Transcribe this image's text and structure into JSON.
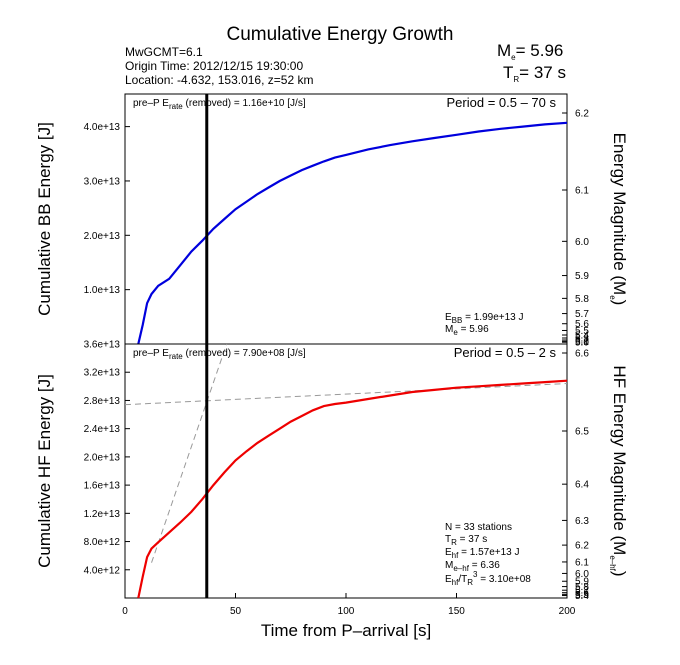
{
  "header": {
    "title": "Cumulative Energy Growth",
    "info_line1": "MwGCMT=6.1",
    "info_line2": "Origin Time: 2012/12/15 19:30:00",
    "info_line3": "Location: -4.632, 153.016, z=52 km",
    "me_prefix": "M",
    "me_sub": "e",
    "me_value": "= 5.96",
    "tr_prefix": "T",
    "tr_sub": "R",
    "tr_value": "= 37 s"
  },
  "colors": {
    "bb": "#0000dd",
    "hf": "#ee0000",
    "marker": "#000000",
    "dashed": "#999999"
  },
  "chart_data": [
    {
      "type": "line",
      "xlim": [
        0,
        200
      ],
      "ylim": [
        0,
        46000000000000.0
      ],
      "ylabel": "Cumulative BB Energy [J]",
      "right_label_main": "Energy Magnitude (M",
      "right_label_sub": "e",
      "right_label_end": ")",
      "period": "Period = 0.5 – 70 s",
      "rate_prefix": "pre–P E",
      "rate_sub": "rate",
      "rate_text": " (removed) = 1.16e+10 [J/s]",
      "ann1_prefix": "E",
      "ann1_sub": "BB",
      "ann1_text": " = 1.99e+13 J",
      "ann2_prefix": "M",
      "ann2_sub": "e",
      "ann2_text": " = 5.96",
      "yticks": [
        {
          "v": 10000000000000.0,
          "label": "1.0e+13"
        },
        {
          "v": 20000000000000.0,
          "label": "2.0e+13"
        },
        {
          "v": 30000000000000.0,
          "label": "3.0e+13"
        },
        {
          "v": 40000000000000.0,
          "label": "4.0e+13"
        }
      ],
      "right_ticks": [
        {
          "v": 6.2,
          "label": "6.2"
        },
        {
          "v": 6.1,
          "label": "6.1"
        },
        {
          "v": 6.0,
          "label": "6.0"
        },
        {
          "v": 5.9,
          "label": "5.9"
        },
        {
          "v": 5.8,
          "label": "5.8"
        },
        {
          "v": 5.7,
          "label": "5.7"
        },
        {
          "v": 5.6,
          "label": "5.6"
        },
        {
          "v": 5.5,
          "label": "5.5"
        },
        {
          "v": 5.4,
          "label": "5.4"
        },
        {
          "v": 5.3,
          "label": "5.3"
        },
        {
          "v": 5.2,
          "label": "5.2"
        },
        {
          "v": 5.1,
          "label": "5.1"
        },
        {
          "v": 5.0,
          "label": "5.0"
        }
      ],
      "series": [
        {
          "x": [
            6,
            8,
            10,
            12,
            15,
            20,
            25,
            30,
            35,
            40,
            45,
            50,
            55,
            60,
            65,
            70,
            75,
            80,
            85,
            90,
            95,
            100,
            110,
            120,
            130,
            140,
            150,
            160,
            170,
            180,
            190,
            200
          ],
          "y": [
            0,
            3500000000000.0,
            7500000000000.0,
            9200000000000.0,
            10700000000000.0,
            12000000000000.0,
            14500000000000.0,
            17000000000000.0,
            19000000000000.0,
            21200000000000.0,
            23000000000000.0,
            24800000000000.0,
            26200000000000.0,
            27600000000000.0,
            28800000000000.0,
            30000000000000.0,
            31000000000000.0,
            32000000000000.0,
            32800000000000.0,
            33600000000000.0,
            34300000000000.0,
            34800000000000.0,
            35800000000000.0,
            36600000000000.0,
            37300000000000.0,
            37900000000000.0,
            38500000000000.0,
            39100000000000.0,
            39600000000000.0,
            40000000000000.0,
            40400000000000.0,
            40700000000000.0
          ]
        }
      ]
    },
    {
      "type": "line",
      "xlim": [
        0,
        200
      ],
      "ylim": [
        0,
        36000000000000.0
      ],
      "xlabel": "Time from P–arrival [s]",
      "ylabel": "Cumulative HF Energy [J]",
      "right_label_main": "HF Energy Magnitude (M",
      "right_label_sub": "e–hf",
      "right_label_end": ")",
      "period": "Period = 0.5 – 2 s",
      "rate_prefix": "pre–P E",
      "rate_sub": "rate",
      "rate_text": " (removed) = 7.90e+08 [J/s]",
      "ann_n": "N = 33 stations",
      "ann_tr_prefix": "T",
      "ann_tr_sub": "R",
      "ann_tr_text": " = 37  s",
      "ann_ehf_prefix": "E",
      "ann_ehf_sub": "hf",
      "ann_ehf_text": " = 1.57e+13 J",
      "ann_me_prefix": "M",
      "ann_me_sub": "e–hf",
      "ann_me_text": " = 6.36",
      "ann_ratio_prefix": "E",
      "ann_ratio_sub": "hf",
      "ann_ratio_mid": "/T",
      "ann_ratio_sub2": "R",
      "ann_ratio_sup": "3",
      "ann_ratio_text": " =  3.10e+08",
      "xticks": [
        {
          "v": 0,
          "label": "0"
        },
        {
          "v": 50,
          "label": "50"
        },
        {
          "v": 100,
          "label": "100"
        },
        {
          "v": 150,
          "label": "150"
        },
        {
          "v": 200,
          "label": "200"
        }
      ],
      "yticks": [
        {
          "v": 4000000000000.0,
          "label": "4.0e+12"
        },
        {
          "v": 8000000000000.0,
          "label": "8.0e+12"
        },
        {
          "v": 12000000000000.0,
          "label": "1.2e+13"
        },
        {
          "v": 16000000000000.0,
          "label": "1.6e+13"
        },
        {
          "v": 20000000000000.0,
          "label": "2.0e+13"
        },
        {
          "v": 24000000000000.0,
          "label": "2.4e+13"
        },
        {
          "v": 28000000000000.0,
          "label": "2.8e+13"
        },
        {
          "v": 32000000000000.0,
          "label": "3.2e+13"
        },
        {
          "v": 36000000000000.0,
          "label": "3.6e+13"
        }
      ],
      "right_ticks": [
        {
          "v": 6.6,
          "label": "6.6"
        },
        {
          "v": 6.5,
          "label": "6.5"
        },
        {
          "v": 6.4,
          "label": "6.4"
        },
        {
          "v": 6.3,
          "label": "6.3"
        },
        {
          "v": 6.2,
          "label": "6.2"
        },
        {
          "v": 6.1,
          "label": "6.1"
        },
        {
          "v": 6.0,
          "label": "6.0"
        },
        {
          "v": 5.9,
          "label": "5.9"
        },
        {
          "v": 5.8,
          "label": "5.8"
        },
        {
          "v": 5.7,
          "label": "5.7"
        },
        {
          "v": 5.6,
          "label": "5.6"
        },
        {
          "v": 5.5,
          "label": "5.5"
        },
        {
          "v": 5.4,
          "label": "5.4"
        }
      ],
      "series": [
        {
          "x": [
            6,
            8,
            10,
            12,
            15,
            20,
            25,
            30,
            35,
            40,
            45,
            50,
            55,
            60,
            65,
            70,
            75,
            80,
            85,
            90,
            95,
            100,
            110,
            120,
            130,
            140,
            150,
            160,
            170,
            180,
            190,
            200
          ],
          "y": [
            0,
            3000000000000.0,
            5800000000000.0,
            7000000000000.0,
            7900000000000.0,
            9300000000000.0,
            10700000000000.0,
            12200000000000.0,
            14000000000000.0,
            16000000000000.0,
            17800000000000.0,
            19500000000000.0,
            20800000000000.0,
            22000000000000.0,
            23000000000000.0,
            24000000000000.0,
            25000000000000.0,
            25800000000000.0,
            26600000000000.0,
            27200000000000.0,
            27500000000000.0,
            27700000000000.0,
            28200000000000.0,
            28700000000000.0,
            29200000000000.0,
            29500000000000.0,
            29800000000000.0,
            30000000000000.0,
            30200000000000.0,
            30400000000000.0,
            30600000000000.0,
            30800000000000.0
          ]
        }
      ],
      "dashed_lines": [
        {
          "x": [
            0,
            200
          ],
          "y": [
            27400000000000.0,
            30400000000000.0
          ]
        },
        {
          "x": [
            12,
            46
          ],
          "y": [
            5000000000000.0,
            36000000000000.0
          ]
        }
      ]
    }
  ],
  "marker_x": 37
}
